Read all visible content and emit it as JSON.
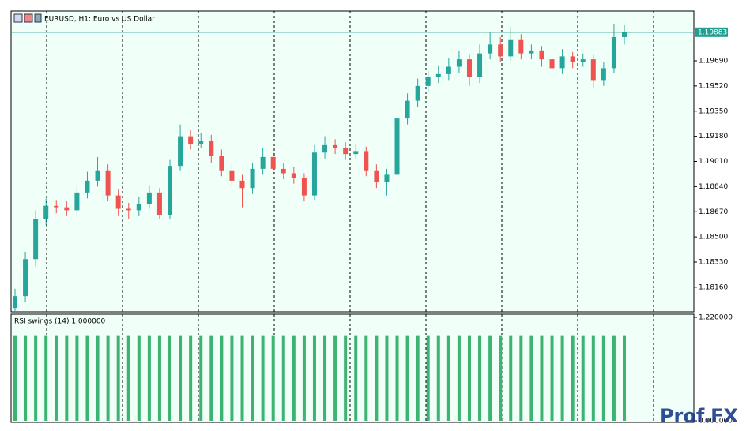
{
  "chart_data": [
    {
      "type": "candlestick",
      "title": "EURUSD, H1:  Euro vs US Dollar",
      "watermark": "Prof.FX",
      "up_color": "#26a69a",
      "down_color": "#ef5350",
      "background": "#f0fff8",
      "open": [
        1.1802,
        1.181,
        1.1835,
        1.1862,
        1.1871,
        1.187,
        1.1868,
        1.188,
        1.1888,
        1.1895,
        1.1878,
        1.1869,
        1.1868,
        1.1872,
        1.188,
        1.1865,
        1.1898,
        1.1918,
        1.1913,
        1.1915,
        1.1905,
        1.1895,
        1.1888,
        1.1883,
        1.1896,
        1.1904,
        1.1896,
        1.1893,
        1.189,
        1.1878,
        1.1907,
        1.1912,
        1.191,
        1.1906,
        1.1908,
        1.1895,
        1.1887,
        1.1892,
        1.193,
        1.1942,
        1.1952,
        1.1958,
        1.196,
        1.1965,
        1.197,
        1.1958,
        1.1974,
        1.198,
        1.1972,
        1.1983,
        1.1974,
        1.1976,
        1.197,
        1.1964,
        1.1972,
        1.1968,
        1.197,
        1.1956,
        1.1964,
        1.1985
      ],
      "high": [
        1.1815,
        1.184,
        1.1868,
        1.1876,
        1.1875,
        1.1874,
        1.1885,
        1.1894,
        1.1904,
        1.1899,
        1.1882,
        1.1873,
        1.1877,
        1.1885,
        1.1883,
        1.1902,
        1.1926,
        1.1922,
        1.192,
        1.1919,
        1.1909,
        1.1899,
        1.1892,
        1.19,
        1.191,
        1.1908,
        1.19,
        1.1897,
        1.1893,
        1.1912,
        1.1918,
        1.1916,
        1.1914,
        1.1913,
        1.1911,
        1.1899,
        1.1896,
        1.1935,
        1.1947,
        1.1957,
        1.1962,
        1.1966,
        1.1971,
        1.1976,
        1.1973,
        1.198,
        1.1988,
        1.1985,
        1.1992,
        1.1987,
        1.198,
        1.1979,
        1.1974,
        1.1977,
        1.1975,
        1.1974,
        1.1973,
        1.1968,
        1.1994,
        1.1993
      ],
      "low": [
        1.18,
        1.1806,
        1.183,
        1.1858,
        1.1866,
        1.1864,
        1.1865,
        1.1876,
        1.1884,
        1.1874,
        1.1864,
        1.1862,
        1.1864,
        1.1869,
        1.1862,
        1.1862,
        1.1895,
        1.1909,
        1.191,
        1.19,
        1.1891,
        1.1884,
        1.187,
        1.1879,
        1.1892,
        1.1892,
        1.1889,
        1.1886,
        1.1874,
        1.1875,
        1.1903,
        1.1906,
        1.1902,
        1.1903,
        1.1891,
        1.1883,
        1.1878,
        1.1888,
        1.1926,
        1.1938,
        1.1948,
        1.1954,
        1.1956,
        1.1961,
        1.1952,
        1.1954,
        1.197,
        1.1968,
        1.1969,
        1.197,
        1.197,
        1.1965,
        1.1959,
        1.196,
        1.1964,
        1.1965,
        1.1951,
        1.1952,
        1.1961,
        1.198
      ],
      "close": [
        1.181,
        1.1835,
        1.1862,
        1.1871,
        1.187,
        1.1868,
        1.188,
        1.1888,
        1.1895,
        1.1878,
        1.1869,
        1.1868,
        1.1872,
        1.188,
        1.1865,
        1.1898,
        1.1918,
        1.1913,
        1.1915,
        1.1905,
        1.1895,
        1.1888,
        1.1883,
        1.1896,
        1.1904,
        1.1896,
        1.1893,
        1.189,
        1.1878,
        1.1907,
        1.1912,
        1.191,
        1.1906,
        1.1908,
        1.1895,
        1.1887,
        1.1892,
        1.193,
        1.1942,
        1.1952,
        1.1958,
        1.196,
        1.1965,
        1.197,
        1.1958,
        1.1974,
        1.198,
        1.1972,
        1.1983,
        1.1974,
        1.1976,
        1.197,
        1.1964,
        1.1972,
        1.1968,
        1.197,
        1.1956,
        1.1964,
        1.1985,
        1.19883
      ],
      "current_price": {
        "value": 1.19883,
        "label": "1.19883"
      },
      "price_line_color": "#20a090",
      "ylim": [
        1.17994,
        1.20026
      ],
      "yticks": [
        {
          "value": 1.1816,
          "label": "1.18160"
        },
        {
          "value": 1.1833,
          "label": "1.18330"
        },
        {
          "value": 1.185,
          "label": "1.18500"
        },
        {
          "value": 1.1867,
          "label": "1.18670"
        },
        {
          "value": 1.1884,
          "label": "1.18840"
        },
        {
          "value": 1.1901,
          "label": "1.19010"
        },
        {
          "value": 1.1918,
          "label": "1.19180"
        },
        {
          "value": 1.1935,
          "label": "1.19350"
        },
        {
          "value": 1.1952,
          "label": "1.19520"
        },
        {
          "value": 1.1969,
          "label": "1.19690"
        }
      ]
    },
    {
      "type": "histogram-bars",
      "title": "RSI swings (14) 1.000000",
      "color": "#3cb371",
      "values": [
        1,
        1,
        1,
        1,
        1,
        1,
        1,
        1,
        1,
        1,
        1,
        1,
        1,
        1,
        1,
        1,
        1,
        1,
        1,
        1,
        1,
        1,
        1,
        1,
        1,
        1,
        1,
        1,
        1,
        1,
        1,
        1,
        1,
        1,
        1,
        1,
        1,
        1,
        1,
        1,
        1,
        1,
        1,
        1,
        1,
        1,
        1,
        1,
        1,
        1,
        1,
        1,
        1,
        1,
        1,
        1,
        1,
        1,
        1,
        1
      ],
      "ylim": [
        0,
        1.22
      ],
      "yticks": [
        {
          "value": 1.22,
          "label": "1.220000"
        },
        {
          "value": 0,
          "label": "0.000000"
        }
      ]
    }
  ]
}
